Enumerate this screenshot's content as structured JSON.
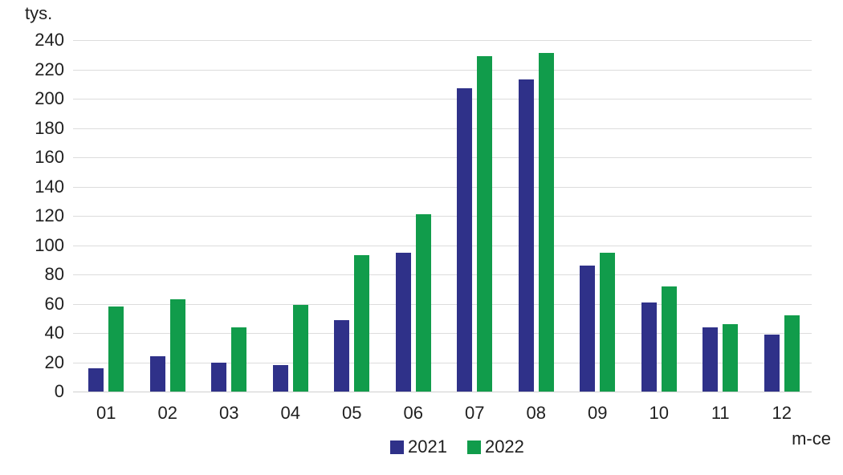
{
  "chart_data": {
    "type": "bar",
    "unit_label": "tys.",
    "xlabel": "m-ce",
    "categories": [
      "01",
      "02",
      "03",
      "04",
      "05",
      "06",
      "07",
      "08",
      "09",
      "10",
      "11",
      "12"
    ],
    "series": [
      {
        "name": "2021",
        "color": "#2f3189",
        "values": [
          16,
          24,
          20,
          18,
          49,
          95,
          207,
          213,
          86,
          61,
          44,
          39
        ]
      },
      {
        "name": "2022",
        "color": "#119c4b",
        "values": [
          58,
          63,
          44,
          59,
          93,
          121,
          229,
          231,
          95,
          72,
          46,
          52
        ]
      }
    ],
    "ylim": [
      0,
      240
    ],
    "ytick_step": 20,
    "ytick_labels": [
      "240",
      "220",
      "200",
      "180",
      "160",
      "140",
      "120",
      "100",
      "80",
      "60",
      "40",
      "20",
      "0"
    ],
    "grid": true,
    "legend_position": "bottom",
    "colors": {
      "gridline": "#dcdcdc",
      "text": "#1f1f1f",
      "background": "#ffffff"
    }
  }
}
